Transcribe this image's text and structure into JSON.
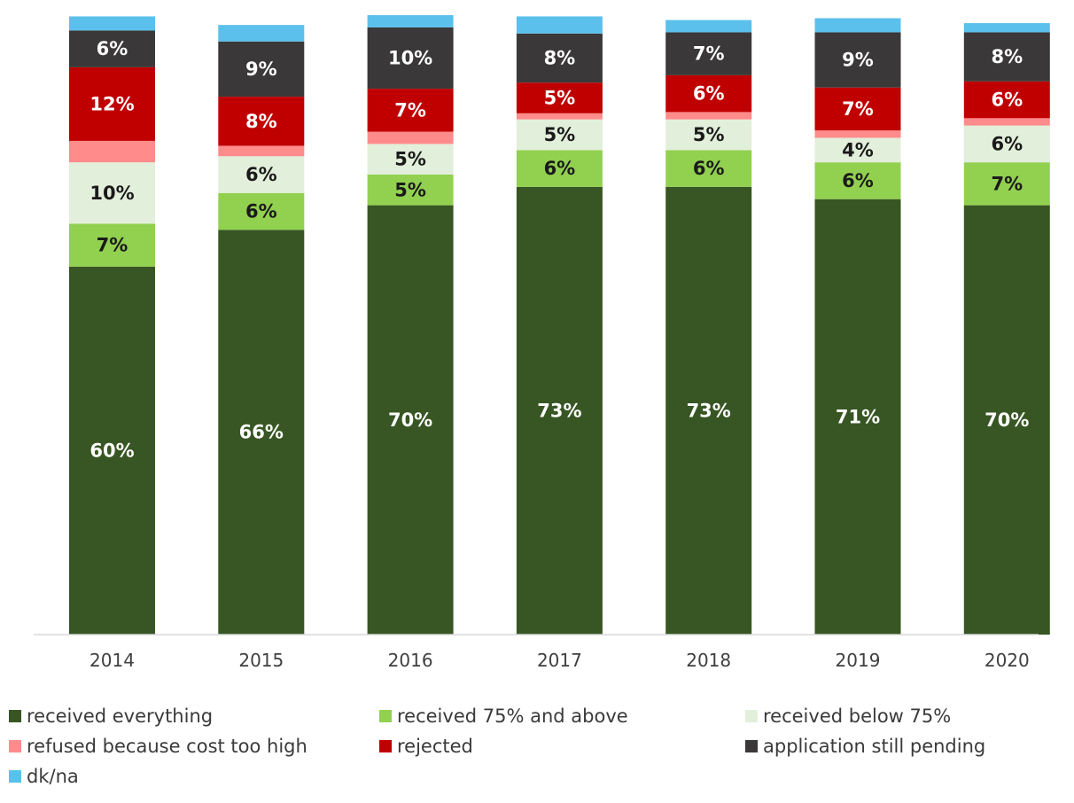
{
  "chart_data": {
    "type": "bar",
    "stacked": true,
    "categories": [
      "2014",
      "2015",
      "2016",
      "2017",
      "2018",
      "2019",
      "2020"
    ],
    "series": [
      {
        "name": "received everything",
        "color": "#375623",
        "label_color": "#ffffff",
        "values": [
          60,
          66,
          70,
          73,
          73,
          71,
          70
        ],
        "labels": [
          "60%",
          "66%",
          "70%",
          "73%",
          "73%",
          "71%",
          "70%"
        ]
      },
      {
        "name": "received 75% and above",
        "color": "#92d050",
        "label_color": "#1a1a1a",
        "values": [
          7,
          6,
          5,
          6,
          6,
          6,
          7
        ],
        "labels": [
          "7%",
          "6%",
          "5%",
          "6%",
          "6%",
          "6%",
          "7%"
        ]
      },
      {
        "name": "received below 75%",
        "color": "#e2efda",
        "label_color": "#1a1a1a",
        "values": [
          10,
          6,
          5,
          5,
          5,
          4,
          6
        ],
        "labels": [
          "10%",
          "6%",
          "5%",
          "5%",
          "5%",
          "4%",
          "6%"
        ]
      },
      {
        "name": "refused because cost too high",
        "color": "#ff8b8b",
        "label_color": "#1a1a1a",
        "values": [
          3.5,
          1.7,
          2,
          1,
          1.2,
          1.2,
          1.2
        ],
        "labels": [
          "",
          "",
          "",
          "",
          "",
          "",
          ""
        ]
      },
      {
        "name": "rejected",
        "color": "#c00000",
        "label_color": "#ffffff",
        "values": [
          12,
          8,
          7,
          5,
          6,
          7,
          6
        ],
        "labels": [
          "12%",
          "8%",
          "7%",
          "5%",
          "6%",
          "7%",
          "6%"
        ]
      },
      {
        "name": "application still pending",
        "color": "#3a3838",
        "label_color": "#ffffff",
        "values": [
          6,
          9,
          10,
          8,
          7,
          9,
          8
        ],
        "labels": [
          "6%",
          "9%",
          "10%",
          "8%",
          "7%",
          "9%",
          "8%"
        ]
      },
      {
        "name": "dk/na",
        "color": "#5bc0eb",
        "label_color": "#1a1a1a",
        "values": [
          2.3,
          2.7,
          2,
          2.8,
          2,
          2.3,
          1.5
        ],
        "labels": [
          "",
          "",
          "",
          "",
          "",
          "",
          ""
        ]
      }
    ],
    "title": "",
    "xlabel": "",
    "ylabel": "",
    "ylim": [
      0,
      100
    ],
    "grid": false,
    "legend_position": "bottom"
  }
}
